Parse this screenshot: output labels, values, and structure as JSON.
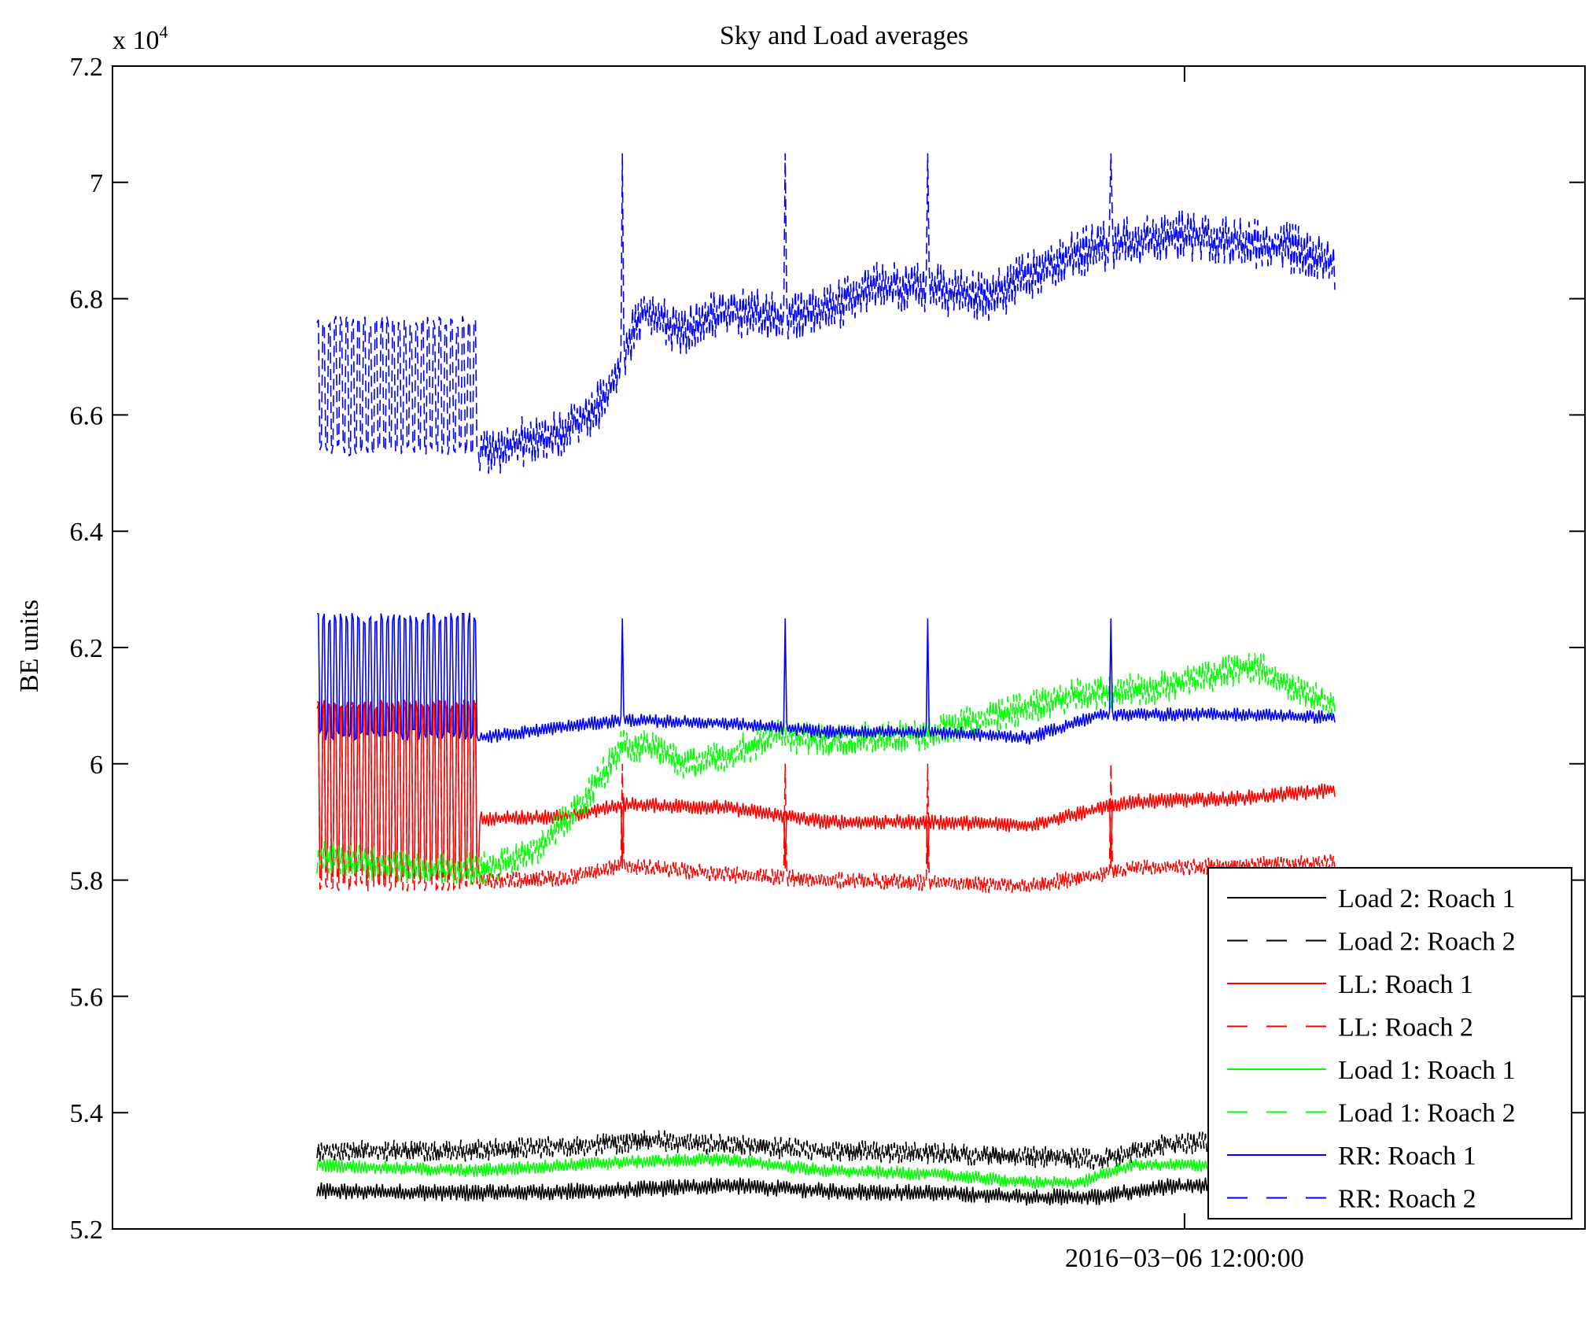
{
  "chart_data": {
    "type": "line",
    "title": "Sky and Load averages",
    "xlabel": "",
    "ylabel": "BE units",
    "y_multiplier_base": "x 10",
    "y_multiplier_exp": "4",
    "ylim": [
      5.2,
      7.2
    ],
    "yticks": [
      {
        "value": 5.2,
        "label": "5.2"
      },
      {
        "value": 5.4,
        "label": "5.4"
      },
      {
        "value": 5.6,
        "label": "5.6"
      },
      {
        "value": 5.8,
        "label": "5.8"
      },
      {
        "value": 6.0,
        "label": "6"
      },
      {
        "value": 6.2,
        "label": "6.2"
      },
      {
        "value": 6.4,
        "label": "6.4"
      },
      {
        "value": 6.6,
        "label": "6.6"
      },
      {
        "value": 6.8,
        "label": "6.8"
      },
      {
        "value": 7.0,
        "label": "7"
      },
      {
        "value": 7.2,
        "label": "7.2"
      }
    ],
    "xticks": [
      {
        "value": 0.8523,
        "label": "2016−03−06 12:00:00"
      }
    ],
    "grid": false,
    "legend_position": "bottom-right",
    "series": [
      {
        "name": "Load 2: Roach 1",
        "color": "#000000",
        "dash": "solid",
        "x": [
          0.0,
          0.15,
          0.28,
          0.4,
          0.5,
          0.6,
          0.7,
          0.77,
          0.83,
          0.9,
          1.0
        ],
        "y": [
          5.265,
          5.262,
          5.265,
          5.275,
          5.265,
          5.262,
          5.255,
          5.255,
          5.272,
          5.275,
          5.28
        ],
        "amp": 0.01
      },
      {
        "name": "Load 2: Roach 2",
        "color": "#000000",
        "dash": "dashed",
        "x": [
          0.0,
          0.15,
          0.28,
          0.33,
          0.4,
          0.5,
          0.6,
          0.7,
          0.77,
          0.83,
          0.9,
          1.0
        ],
        "y": [
          5.335,
          5.335,
          5.345,
          5.352,
          5.345,
          5.335,
          5.33,
          5.325,
          5.32,
          5.345,
          5.35,
          5.355
        ],
        "amp": 0.013
      },
      {
        "name": "LL: Roach 1",
        "color": "#ff0000",
        "dash": "solid",
        "x": [
          0.0,
          0.15,
          0.16,
          0.25,
          0.3,
          0.4,
          0.5,
          0.6,
          0.7,
          0.8,
          0.9,
          1.0
        ],
        "y": [
          5.95,
          5.95,
          5.905,
          5.91,
          5.93,
          5.925,
          5.9,
          5.9,
          5.895,
          5.935,
          5.94,
          5.955
        ],
        "amp": 0.009,
        "burst_end": 0.16,
        "burst_lo": 5.8,
        "burst_hi": 6.11,
        "spike_x": [
          0.3,
          0.46,
          0.6,
          0.78
        ],
        "spike_to": 5.82
      },
      {
        "name": "LL: Roach 2",
        "color": "#ff0000",
        "dash": "dashed",
        "x": [
          0.0,
          0.15,
          0.25,
          0.3,
          0.4,
          0.5,
          0.6,
          0.7,
          0.8,
          0.9,
          1.0
        ],
        "y": [
          5.81,
          5.795,
          5.805,
          5.825,
          5.81,
          5.8,
          5.795,
          5.79,
          5.82,
          5.825,
          5.83
        ],
        "amp": 0.01,
        "burst_end": 0.16,
        "burst_lo": 5.78,
        "burst_hi": 6.11,
        "spike_x": [
          0.3,
          0.46,
          0.6,
          0.78
        ],
        "spike_to": 6.0
      },
      {
        "name": "Load 1: Roach 1",
        "color": "#00ff00",
        "dash": "solid",
        "x": [
          0.0,
          0.15,
          0.3,
          0.4,
          0.5,
          0.6,
          0.7,
          0.75,
          0.8,
          0.9,
          1.0
        ],
        "y": [
          5.31,
          5.3,
          5.315,
          5.32,
          5.3,
          5.295,
          5.28,
          5.28,
          5.31,
          5.31,
          5.31
        ],
        "amp": 0.008
      },
      {
        "name": "Load 1: Roach 2",
        "color": "#00ff00",
        "dash": "dashed",
        "x": [
          0.0,
          0.1,
          0.17,
          0.22,
          0.26,
          0.3,
          0.33,
          0.36,
          0.4,
          0.45,
          0.5,
          0.6,
          0.66,
          0.75,
          0.82,
          0.87,
          0.92,
          0.96,
          1.0
        ],
        "y": [
          5.84,
          5.82,
          5.82,
          5.86,
          5.93,
          6.03,
          6.03,
          6.0,
          6.01,
          6.05,
          6.04,
          6.05,
          6.08,
          6.12,
          6.13,
          6.15,
          6.17,
          6.13,
          6.1
        ],
        "amp": 0.02
      },
      {
        "name": "RR: Roach 1",
        "color": "#0000ff",
        "dash": "solid",
        "x": [
          0.0,
          0.15,
          0.16,
          0.25,
          0.3,
          0.4,
          0.5,
          0.6,
          0.7,
          0.77,
          0.83,
          0.9,
          1.0
        ],
        "y": [
          6.06,
          6.05,
          6.045,
          6.065,
          6.075,
          6.07,
          6.055,
          6.055,
          6.045,
          6.085,
          6.085,
          6.085,
          6.08
        ],
        "amp": 0.008,
        "burst_end": 0.16,
        "burst_lo": 6.04,
        "burst_hi": 6.26,
        "spike_x": [
          0.3,
          0.46,
          0.6,
          0.78
        ],
        "spike_to": 6.25
      },
      {
        "name": "RR: Roach 2",
        "color": "#0000ff",
        "dash": "dashed",
        "x": [
          0.0,
          0.17,
          0.24,
          0.28,
          0.32,
          0.36,
          0.4,
          0.45,
          0.5,
          0.55,
          0.6,
          0.66,
          0.7,
          0.75,
          0.8,
          0.85,
          0.9,
          0.95,
          1.0
        ],
        "y": [
          6.66,
          6.54,
          6.57,
          6.62,
          6.78,
          6.74,
          6.78,
          6.77,
          6.78,
          6.82,
          6.82,
          6.8,
          6.84,
          6.88,
          6.9,
          6.91,
          6.9,
          6.89,
          6.86
        ],
        "amp": 0.03,
        "burst_end": 0.16,
        "burst_lo": 6.53,
        "burst_hi": 6.77,
        "spike_x": [
          0.3,
          0.46,
          0.6,
          0.78
        ],
        "spike_to": 7.05
      }
    ]
  }
}
